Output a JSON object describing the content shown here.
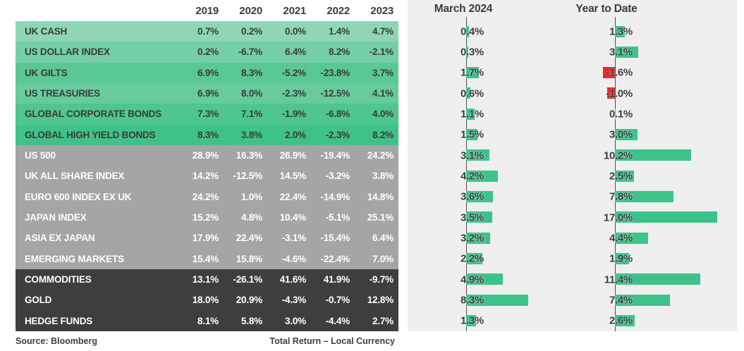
{
  "table": {
    "year_headers": [
      "2019",
      "2020",
      "2021",
      "2022",
      "2023"
    ],
    "groups": [
      {
        "name": "cash-and-bonds",
        "text_color": "#3b3b3b",
        "row_bg": [
          "#8fd6b5",
          "#74cfa6",
          "#5ac893",
          "#67cb9c",
          "#4ec68d",
          "#3fc287"
        ],
        "rows": [
          {
            "label": "UK CASH",
            "values": [
              "0.7%",
              "0.2%",
              "0.0%",
              "1.4%",
              "4.7%"
            ]
          },
          {
            "label": "US DOLLAR INDEX",
            "values": [
              "0.2%",
              "-6.7%",
              "6.4%",
              "8.2%",
              "-2.1%"
            ]
          },
          {
            "label": "UK GILTS",
            "values": [
              "6.9%",
              "8.3%",
              "-5.2%",
              "-23.8%",
              "3.7%"
            ]
          },
          {
            "label": "US TREASURIES",
            "values": [
              "6.9%",
              "8.0%",
              "-2.3%",
              "-12.5%",
              "4.1%"
            ]
          },
          {
            "label": "GLOBAL CORPORATE BONDS",
            "values": [
              "7.3%",
              "7.1%",
              "-1.9%",
              "-6.8%",
              "4.0%"
            ]
          },
          {
            "label": "GLOBAL HIGH YIELD BONDS",
            "values": [
              "8.3%",
              "3.8%",
              "2.0%",
              "-2.3%",
              "8.2%"
            ]
          }
        ]
      },
      {
        "name": "equities",
        "text_color": "#ffffff",
        "row_bg": [
          "#a5a5a5",
          "#a5a5a5",
          "#a5a5a5",
          "#a5a5a5",
          "#a5a5a5",
          "#a5a5a5"
        ],
        "rows": [
          {
            "label": "US 500",
            "values": [
              "28.9%",
              "16.3%",
              "26.9%",
              "-19.4%",
              "24.2%"
            ]
          },
          {
            "label": "UK ALL SHARE INDEX",
            "values": [
              "14.2%",
              "-12.5%",
              "14.5%",
              "-3.2%",
              "3.8%"
            ]
          },
          {
            "label": "EURO 600 INDEX EX UK",
            "values": [
              "24.2%",
              "1.0%",
              "22.4%",
              "-14.9%",
              "14.8%"
            ]
          },
          {
            "label": "JAPAN INDEX",
            "values": [
              "15.2%",
              "4.8%",
              "10.4%",
              "-5.1%",
              "25.1%"
            ]
          },
          {
            "label": "ASIA EX JAPAN",
            "values": [
              "17.9%",
              "22.4%",
              "-3.1%",
              "-15.4%",
              "6.4%"
            ]
          },
          {
            "label": "EMERGING MARKETS",
            "values": [
              "15.4%",
              "15.8%",
              "-4.6%",
              "-22.4%",
              "7.0%"
            ]
          }
        ]
      },
      {
        "name": "alternatives",
        "text_color": "#ffffff",
        "row_bg": [
          "#3e3e3e",
          "#3e3e3e",
          "#3e3e3e"
        ],
        "rows": [
          {
            "label": "COMMODITIES",
            "values": [
              "13.1%",
              "-26.1%",
              "41.6%",
              "41.9%",
              "-9.7%"
            ]
          },
          {
            "label": "GOLD",
            "values": [
              "18.0%",
              "20.9%",
              "-4.3%",
              "-0.7%",
              "12.8%"
            ]
          },
          {
            "label": "HEDGE FUNDS",
            "values": [
              "8.1%",
              "5.8%",
              "3.0%",
              "-4.4%",
              "2.7%"
            ]
          }
        ]
      }
    ],
    "footer": {
      "source": "Source: Bloomberg",
      "note": "Total Return – Local Currency"
    }
  },
  "chart_data": {
    "type": "bar",
    "orientation": "horizontal",
    "categories": [
      "UK CASH",
      "US DOLLAR INDEX",
      "UK GILTS",
      "US TREASURIES",
      "GLOBAL CORPORATE BONDS",
      "GLOBAL HIGH YIELD BONDS",
      "US 500",
      "UK ALL SHARE INDEX",
      "EURO 600 INDEX EX UK",
      "JAPAN INDEX",
      "ASIA EX JAPAN",
      "EMERGING MARKETS",
      "COMMODITIES",
      "GOLD",
      "HEDGE FUNDS"
    ],
    "series": [
      {
        "name": "March 2024",
        "values": [
          0.4,
          0.3,
          1.7,
          0.6,
          1.1,
          1.5,
          3.1,
          4.2,
          3.6,
          3.5,
          3.2,
          2.2,
          4.9,
          8.3,
          1.3
        ]
      },
      {
        "name": "Year to Date",
        "values": [
          1.3,
          3.1,
          -1.6,
          -1.0,
          0.1,
          3.0,
          10.2,
          2.5,
          7.8,
          17.0,
          4.4,
          1.9,
          11.4,
          7.4,
          2.6
        ]
      }
    ],
    "value_suffix": "%",
    "grid": false,
    "legend_position": "column-headers",
    "panel_background": "#efefef",
    "bar_color_positive": "#3dc389",
    "bar_color_negative": "#e8262b",
    "axis_line_color": "#4f4f4f",
    "label_color": "#3b3b3b"
  }
}
